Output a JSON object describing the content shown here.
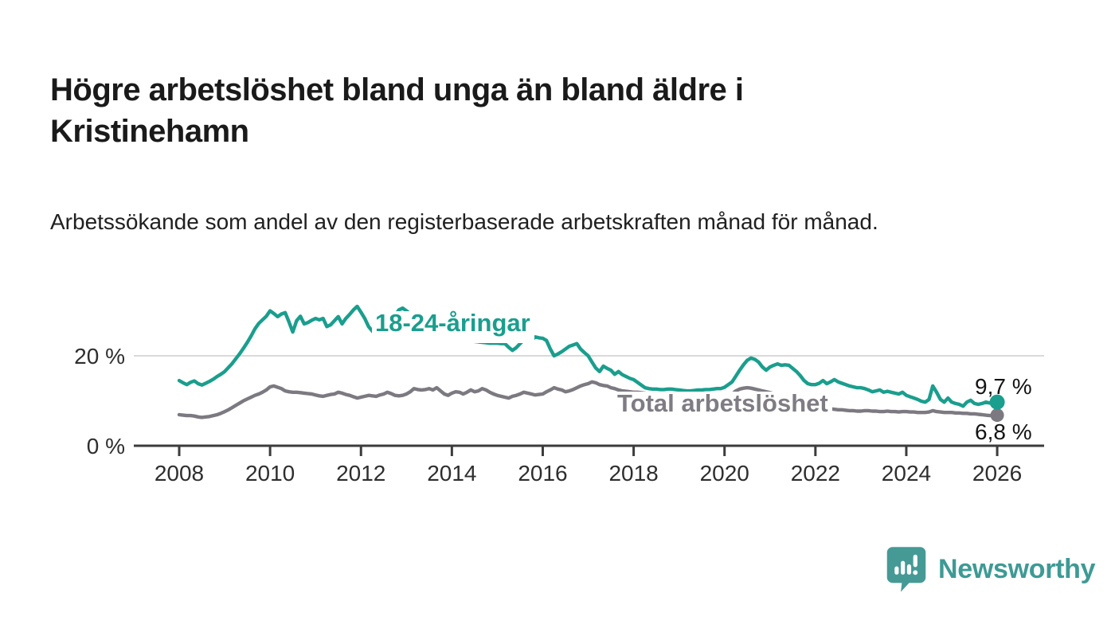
{
  "title": "Högre arbetslöshet bland unga än bland äldre i Kristinehamn",
  "subtitle": "Arbetssökande som andel av den registerbaserade arbetskraften månad för månad.",
  "chart_data": {
    "type": "line",
    "title": "Högre arbetslöshet bland unga än bland äldre i Kristinehamn",
    "subtitle": "Arbetssökande som andel av den registerbaserade arbetskraften månad för månad.",
    "unit": "%",
    "grid": "horizontal gridline at 20 % only, dark baseline at 0 %",
    "legend_position": "inline-labels-on-lines",
    "x_axis": {
      "start_year": 2008,
      "start_month": 1,
      "points_per_year": 12,
      "end": "2026-01"
    },
    "x_tick_years": [
      2008,
      2010,
      2012,
      2014,
      2016,
      2018,
      2020,
      2022,
      2024,
      2026
    ],
    "y_ticks": [
      {
        "value": 20,
        "label": "20 %",
        "grid": true
      },
      {
        "value": 0,
        "label": "0 %",
        "axis": true
      }
    ],
    "ylim": [
      0,
      33
    ],
    "colors": {
      "young": "#1A9E8D",
      "total": "#7C7981",
      "axis": "#3C3C3C",
      "gridline": "#DADADA"
    },
    "series": [
      {
        "name": "18-24-åringar",
        "color": "#1A9E8D",
        "end_label": "9,7 %",
        "end_value": 9.7,
        "values": [
          14.5,
          14,
          13.6,
          14.1,
          14.4,
          13.8,
          13.5,
          13.9,
          14.3,
          14.8,
          15.4,
          15.9,
          16.5,
          17.4,
          18.3,
          19.4,
          20.5,
          21.7,
          23,
          24.4,
          26,
          27.2,
          28,
          28.8,
          30,
          29.4,
          28.7,
          29.3,
          29.6,
          27.5,
          25.3,
          27.8,
          28.8,
          27.1,
          27.4,
          27.9,
          28.3,
          28,
          28.3,
          26.5,
          26.9,
          27.8,
          28.7,
          27.1,
          28.3,
          29.2,
          30.2,
          31,
          29.7,
          28.3,
          26.5,
          25.5,
          24.5,
          23.9,
          25.5,
          26,
          27.5,
          29,
          30.2,
          30.6,
          30,
          29.3,
          28.5,
          28,
          27.4,
          26.8,
          26.3,
          25.8,
          25.4,
          25,
          24.7,
          24.4,
          24.2,
          24,
          23.8,
          23.6,
          23.5,
          23.3,
          23.2,
          23.1,
          23,
          22.9,
          22.8,
          22.8,
          22.8,
          22.7,
          22.7,
          21.9,
          21.2,
          21.8,
          22.7,
          23.5,
          24.2,
          23.4,
          24.2,
          24,
          23.9,
          23.4,
          21.5,
          20,
          20.4,
          20.9,
          21.5,
          22.1,
          22.4,
          22.7,
          21.5,
          20.7,
          20,
          18.6,
          17.3,
          16.5,
          17.7,
          17.2,
          16.8,
          15.9,
          16.5,
          15.8,
          15.4,
          15,
          14.7,
          14.1,
          13.5,
          12.9,
          12.7,
          12.6,
          12.6,
          12.5,
          12.5,
          12.6,
          12.6,
          12.5,
          12.4,
          12.3,
          12.2,
          12.2,
          12.3,
          12.4,
          12.4,
          12.5,
          12.5,
          12.6,
          12.7,
          12.7,
          13,
          13.6,
          14.2,
          15.5,
          16.8,
          18,
          19,
          19.5,
          19.2,
          18.6,
          17.5,
          16.8,
          17.5,
          17.9,
          18.2,
          17.9,
          18,
          17.9,
          17.2,
          16.5,
          15.6,
          14.5,
          13.8,
          13.6,
          13.6,
          13.9,
          14.5,
          13.8,
          14.2,
          14.7,
          14.2,
          13.9,
          13.6,
          13.3,
          13.1,
          12.9,
          12.9,
          12.7,
          12.4,
          12,
          12.2,
          12.4,
          11.9,
          12.1,
          11.9,
          11.7,
          11.5,
          11.9,
          11.2,
          10.9,
          10.6,
          10.3,
          9.9,
          9.7,
          10.3,
          13.3,
          11.9,
          10.3,
          9.7,
          10.6,
          9.7,
          9.4,
          9.2,
          8.8,
          9.7,
          10.1,
          9.4,
          9.2,
          9.4,
          9.7,
          9.5,
          9.6,
          9.7
        ]
      },
      {
        "name": "Total arbetslöshet",
        "color": "#7C7981",
        "end_label": "6,8 %",
        "end_value": 6.8,
        "values": [
          6.9,
          6.8,
          6.7,
          6.7,
          6.6,
          6.4,
          6.3,
          6.4,
          6.5,
          6.7,
          6.9,
          7.2,
          7.6,
          8,
          8.5,
          9,
          9.5,
          10,
          10.4,
          10.8,
          11.2,
          11.5,
          11.9,
          12.4,
          13.1,
          13.3,
          13,
          12.7,
          12.2,
          12,
          11.9,
          11.9,
          11.8,
          11.7,
          11.6,
          11.5,
          11.3,
          11.1,
          11,
          11.2,
          11.4,
          11.5,
          11.9,
          11.7,
          11.4,
          11.2,
          10.9,
          10.6,
          10.8,
          11,
          11.2,
          11.1,
          11,
          11.3,
          11.5,
          11.9,
          11.6,
          11.2,
          11.1,
          11.2,
          11.5,
          12,
          12.7,
          12.5,
          12.4,
          12.5,
          12.7,
          12.4,
          12.9,
          12.2,
          11.5,
          11.2,
          11.7,
          12,
          11.9,
          11.5,
          11.9,
          12.4,
          12,
          12.2,
          12.7,
          12.4,
          11.9,
          11.5,
          11.2,
          11,
          10.8,
          10.6,
          11,
          11.2,
          11.5,
          11.9,
          11.7,
          11.5,
          11.3,
          11.4,
          11.5,
          12,
          12.4,
          12.9,
          12.6,
          12.4,
          12,
          12.2,
          12.5,
          12.9,
          13.3,
          13.6,
          13.8,
          14.2,
          14,
          13.6,
          13.4,
          13.3,
          12.9,
          12.7,
          12.4,
          12.2,
          12.1,
          12,
          11.9,
          11.9,
          11.8,
          11.7,
          11.5,
          11.3,
          11.1,
          10.9,
          10.8,
          10.7,
          10.6,
          10.5,
          10.4,
          10.3,
          10.2,
          10.1,
          10.1,
          10,
          10,
          10.1,
          10.2,
          10.3,
          10.4,
          10.6,
          10.8,
          11,
          11.5,
          12.2,
          12.6,
          12.8,
          12.9,
          12.8,
          12.6,
          12.4,
          12.2,
          12,
          11.8,
          11.6,
          11.4,
          11.1,
          10.8,
          10.5,
          10.2,
          9.9,
          9.6,
          9.4,
          9.2,
          9,
          8.9,
          8.8,
          8.6,
          8.4,
          8.2,
          8.1,
          8,
          8,
          7.9,
          7.8,
          7.8,
          7.7,
          7.7,
          7.8,
          7.8,
          7.7,
          7.7,
          7.6,
          7.6,
          7.7,
          7.6,
          7.6,
          7.5,
          7.6,
          7.6,
          7.5,
          7.5,
          7.4,
          7.4,
          7.4,
          7.5,
          7.8,
          7.6,
          7.5,
          7.4,
          7.4,
          7.4,
          7.3,
          7.3,
          7.2,
          7.2,
          7.1,
          7.1,
          7,
          6.9,
          6.8,
          6.7,
          6.8,
          6.8
        ]
      }
    ]
  },
  "logo": {
    "text": "Newsworthy",
    "color": "#3E9A94",
    "mark_color": "#459A95"
  }
}
